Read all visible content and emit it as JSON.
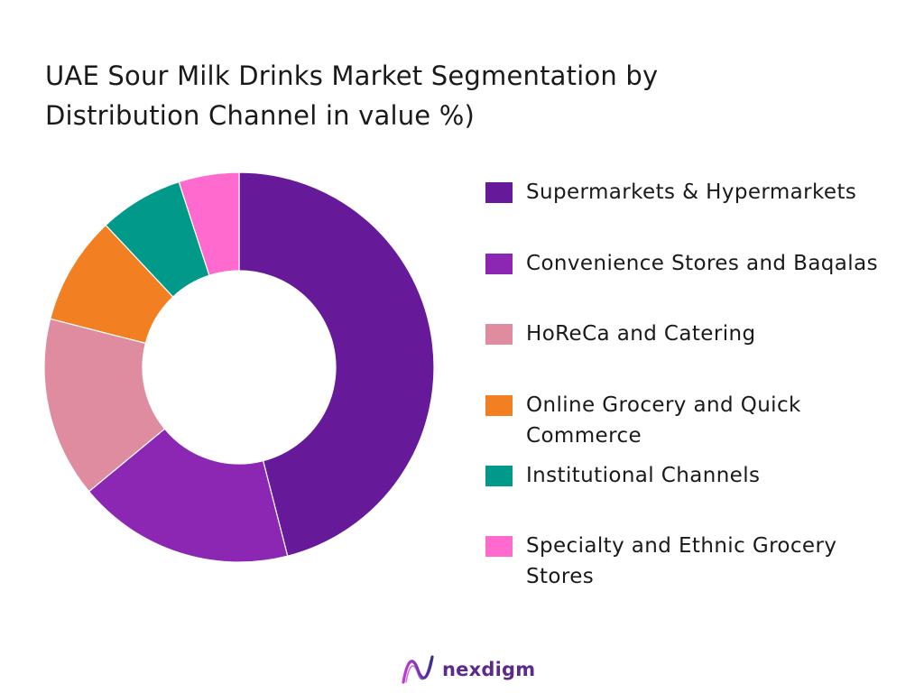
{
  "chart_data": {
    "type": "pie",
    "title": "UAE Sour Milk Drinks Market Segmentation by Distribution Channel in value %)",
    "donut": true,
    "legend_position": "right",
    "categories": [
      "Supermarkets & Hypermarkets",
      "Convenience Stores and Baqalas",
      "HoReCa and Catering",
      "Online Grocery and Quick Commerce",
      "Institutional Channels",
      "Specialty and Ethnic Grocery Stores"
    ],
    "values": [
      46,
      18,
      15,
      9,
      7,
      5
    ],
    "colors": [
      "#661A99",
      "#8B27B3",
      "#DF8BA0",
      "#F27F22",
      "#00998A",
      "#FF6ACF"
    ]
  },
  "branding": {
    "logo_text": "nexdigm",
    "logo_color": "#5b2a8a"
  }
}
